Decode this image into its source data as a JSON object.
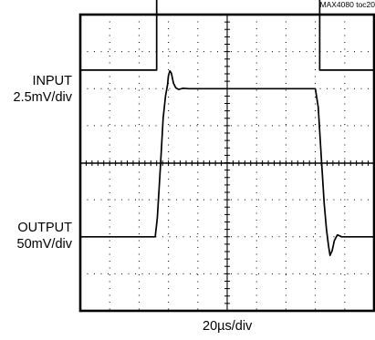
{
  "chart_data": {
    "type": "line",
    "doc_id": "MAX4080 toc20",
    "x_scale": "20µs/div",
    "divisions": {
      "x": 10,
      "y": 8
    },
    "grid": "dotted",
    "channels": [
      {
        "name": "INPUT",
        "scale": "2.5mV/div",
        "baseline_div": 2.5,
        "points": [
          [
            0,
            0
          ],
          [
            2.6,
            0
          ],
          [
            2.6,
            4.15
          ],
          [
            8.15,
            4.15
          ],
          [
            8.15,
            0
          ],
          [
            10,
            0
          ]
        ]
      },
      {
        "name": "OUTPUT",
        "scale": "50mV/div",
        "baseline_div": 2.0,
        "points": [
          [
            0,
            0
          ],
          [
            2.55,
            0
          ],
          [
            2.62,
            0.5
          ],
          [
            2.72,
            1.8
          ],
          [
            2.82,
            3.2
          ],
          [
            2.9,
            3.8
          ],
          [
            2.97,
            4.1
          ],
          [
            3.0,
            4.35
          ],
          [
            3.05,
            4.48
          ],
          [
            3.1,
            4.42
          ],
          [
            3.17,
            4.15
          ],
          [
            3.25,
            4.02
          ],
          [
            3.35,
            3.98
          ],
          [
            3.5,
            4.01
          ],
          [
            3.7,
            4.0
          ],
          [
            8.0,
            4.0
          ],
          [
            8.1,
            3.5
          ],
          [
            8.2,
            2.2
          ],
          [
            8.3,
            0.9
          ],
          [
            8.38,
            0.2
          ],
          [
            8.45,
            -0.25
          ],
          [
            8.5,
            -0.5
          ],
          [
            8.57,
            -0.38
          ],
          [
            8.65,
            -0.1
          ],
          [
            8.75,
            0.05
          ],
          [
            8.9,
            0.0
          ],
          [
            10,
            0
          ]
        ]
      }
    ]
  }
}
